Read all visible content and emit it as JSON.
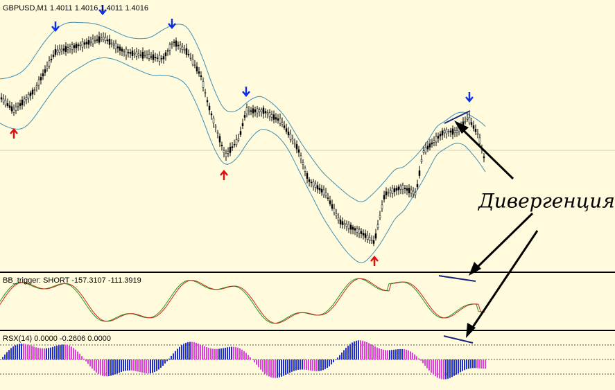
{
  "main_pane": {
    "title": "GBPUSD,M1  1.4011 1.4016 1.4011 1.4016"
  },
  "bb_pane": {
    "title": "BB_trigger: SHORT -157.3107 -111.3919"
  },
  "rsx_pane": {
    "title": "RSX(14) 0.0000 -0.2606 0.0000"
  },
  "annotation": {
    "label": "Дивергенция"
  }
}
